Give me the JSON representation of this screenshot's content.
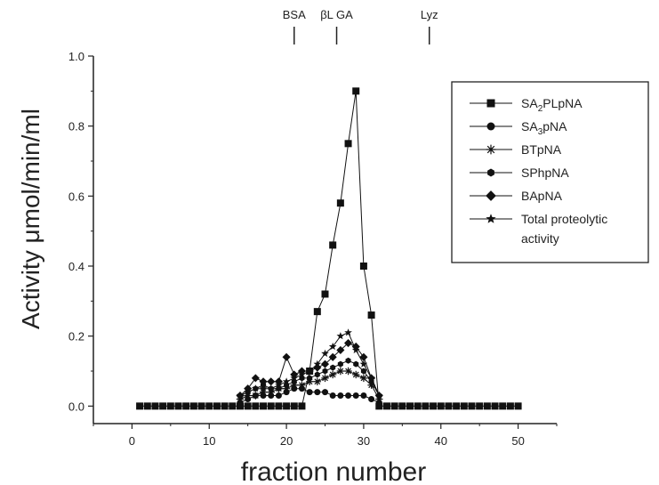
{
  "chart_data": {
    "type": "line",
    "xlabel": "fraction number",
    "ylabel": "Activity μmol/min/ml",
    "xlim": [
      -5,
      55
    ],
    "ylim": [
      -0.05,
      1.0
    ],
    "xticks": [
      "0",
      "10",
      "20",
      "30",
      "40",
      "50"
    ],
    "yticks": [
      "0.0",
      "0.2",
      "0.4",
      "0.6",
      "0.8",
      "1.0"
    ],
    "marker_labels": [
      {
        "label": "BSA",
        "x": 21
      },
      {
        "label": "βL GA",
        "x": 26.5
      },
      {
        "label": "Lyz",
        "x": 38.5
      }
    ],
    "legend_position": "top-right",
    "series": [
      {
        "name": "SA2PLpNA",
        "name_base": "SA",
        "name_sub": "2",
        "name_rest": "PLpNA",
        "marker": "square",
        "x": [
          1,
          2,
          3,
          4,
          5,
          6,
          7,
          8,
          9,
          10,
          11,
          12,
          13,
          14,
          15,
          16,
          17,
          18,
          19,
          20,
          21,
          22,
          23,
          24,
          25,
          26,
          27,
          28,
          29,
          30,
          31,
          32,
          33,
          34,
          35,
          36,
          37,
          38,
          39,
          40,
          41,
          42,
          43,
          44,
          45,
          46,
          47,
          48,
          49,
          50
        ],
        "y": [
          0,
          0,
          0,
          0,
          0,
          0,
          0,
          0,
          0,
          0,
          0,
          0,
          0,
          0,
          0,
          0,
          0,
          0,
          0,
          0,
          0,
          0,
          0.1,
          0.27,
          0.32,
          0.46,
          0.58,
          0.75,
          0.9,
          0.4,
          0.26,
          0,
          0,
          0,
          0,
          0,
          0,
          0,
          0,
          0,
          0,
          0,
          0,
          0,
          0,
          0,
          0,
          0,
          0,
          0
        ]
      },
      {
        "name": "SA3pNA",
        "name_base": "SA",
        "name_sub": "3",
        "name_rest": "pNA",
        "marker": "circle",
        "x": [
          14,
          15,
          16,
          17,
          18,
          19,
          20,
          21,
          22,
          23,
          24,
          25,
          26,
          27,
          28,
          29,
          30,
          31,
          32
        ],
        "y": [
          0.01,
          0.02,
          0.03,
          0.03,
          0.03,
          0.03,
          0.04,
          0.05,
          0.05,
          0.04,
          0.04,
          0.04,
          0.03,
          0.03,
          0.03,
          0.03,
          0.03,
          0.02,
          0.01
        ]
      },
      {
        "name": "BTpNA",
        "marker": "asterisk",
        "x": [
          14,
          15,
          16,
          17,
          18,
          19,
          20,
          21,
          22,
          23,
          24,
          25,
          26,
          27,
          28,
          29,
          30,
          31,
          32
        ],
        "y": [
          0.02,
          0.03,
          0.03,
          0.04,
          0.04,
          0.05,
          0.05,
          0.06,
          0.06,
          0.07,
          0.07,
          0.08,
          0.09,
          0.1,
          0.1,
          0.09,
          0.08,
          0.06,
          0.02
        ]
      },
      {
        "name": "SPhpNA",
        "marker": "hexagon",
        "x": [
          14,
          15,
          16,
          17,
          18,
          19,
          20,
          21,
          22,
          23,
          24,
          25,
          26,
          27,
          28,
          29,
          30,
          31,
          32
        ],
        "y": [
          0.03,
          0.04,
          0.05,
          0.06,
          0.05,
          0.05,
          0.06,
          0.07,
          0.08,
          0.08,
          0.09,
          0.1,
          0.11,
          0.12,
          0.13,
          0.12,
          0.1,
          0.07,
          0.03
        ]
      },
      {
        "name": "BApNA",
        "marker": "diamond",
        "x": [
          14,
          15,
          16,
          17,
          18,
          19,
          20,
          21,
          22,
          23,
          24,
          25,
          26,
          27,
          28,
          29,
          30,
          31,
          32
        ],
        "y": [
          0.03,
          0.05,
          0.08,
          0.07,
          0.07,
          0.07,
          0.14,
          0.09,
          0.1,
          0.1,
          0.11,
          0.12,
          0.14,
          0.16,
          0.18,
          0.17,
          0.14,
          0.08,
          0.03
        ]
      },
      {
        "name": "Total proteolytic activity",
        "name_lines": [
          "Total proteolytic",
          "activity"
        ],
        "marker": "star",
        "x": [
          14,
          15,
          16,
          17,
          18,
          19,
          20,
          21,
          22,
          23,
          24,
          25,
          26,
          27,
          28,
          29,
          30,
          31,
          32
        ],
        "y": [
          0.03,
          0.04,
          0.05,
          0.05,
          0.05,
          0.06,
          0.07,
          0.08,
          0.09,
          0.1,
          0.12,
          0.15,
          0.17,
          0.2,
          0.21,
          0.16,
          0.12,
          0.08,
          0.03
        ]
      }
    ]
  }
}
